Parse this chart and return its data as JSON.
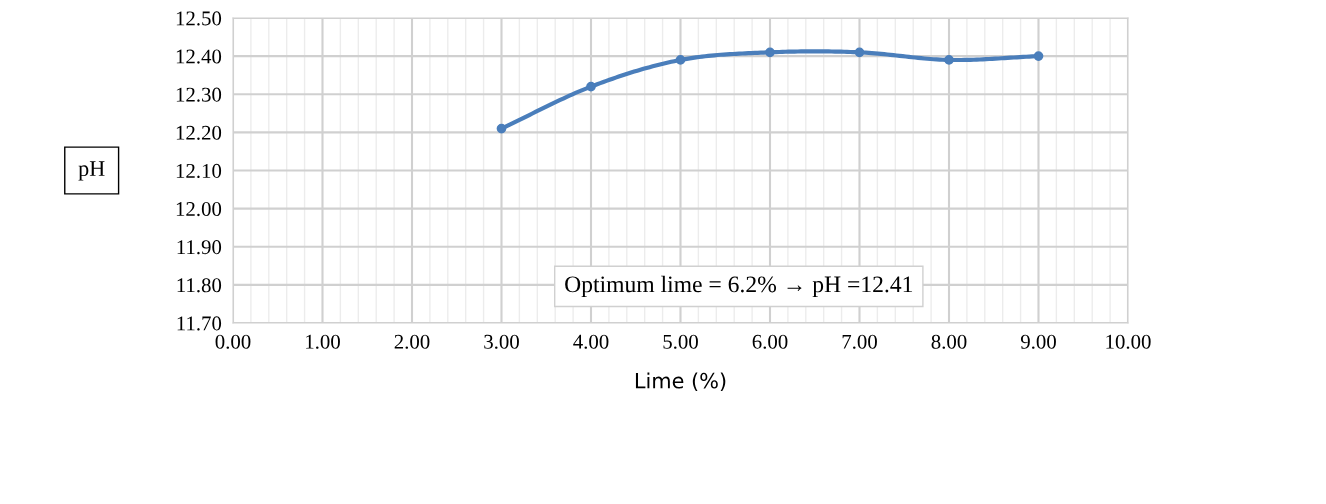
{
  "chart_data": {
    "type": "line",
    "xlabel": "Lime (%)",
    "ylabel": "pH",
    "x": [
      3,
      4,
      5,
      6,
      7,
      8,
      9
    ],
    "series": [
      {
        "color": "#4a7ebb",
        "values": [
          12.21,
          12.32,
          12.39,
          12.41,
          12.41,
          12.39,
          12.4
        ]
      }
    ],
    "xlim": [
      0,
      10
    ],
    "xticks": [
      {
        "value": 0,
        "label": "0.00"
      },
      {
        "value": 1,
        "label": "1.00"
      },
      {
        "value": 2,
        "label": "2.00"
      },
      {
        "value": 3,
        "label": "3.00"
      },
      {
        "value": 4,
        "label": "4.00"
      },
      {
        "value": 5,
        "label": "5.00"
      },
      {
        "value": 6,
        "label": "6.00"
      },
      {
        "value": 7,
        "label": "7.00"
      },
      {
        "value": 8,
        "label": "8.00"
      },
      {
        "value": 9,
        "label": "9.00"
      },
      {
        "value": 10,
        "label": "10.00"
      }
    ],
    "ylim": [
      11.7,
      12.5
    ],
    "yticks": [
      {
        "value": 11.7,
        "label": "11.70"
      },
      {
        "value": 11.8,
        "label": "11.80"
      },
      {
        "value": 11.9,
        "label": "11.90"
      },
      {
        "value": 12.0,
        "label": "12.00"
      },
      {
        "value": 12.1,
        "label": "12.10"
      },
      {
        "value": 12.2,
        "label": "12.20"
      },
      {
        "value": 12.3,
        "label": "12.30"
      },
      {
        "value": 12.4,
        "label": "12.40"
      },
      {
        "value": 12.5,
        "label": "12.50"
      }
    ],
    "annotations": [
      "Optimum lime = 6.2% → pH =12.41"
    ],
    "grid": true,
    "marker": "circle",
    "line_style": "solid",
    "legend": false
  }
}
